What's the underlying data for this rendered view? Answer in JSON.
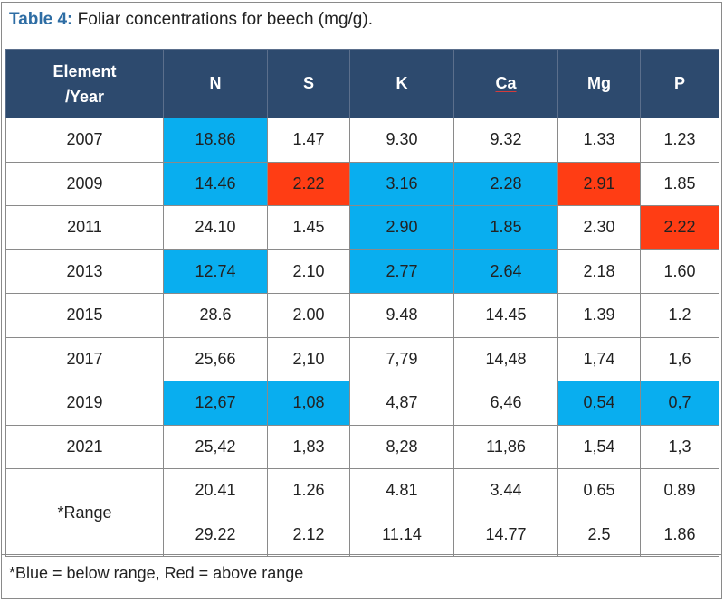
{
  "caption": {
    "label": "Table 4:",
    "text": " Foliar concentrations for beech (mg/g)."
  },
  "colors": {
    "header_bg": "#2d4a6e",
    "below_range": "#09aeef",
    "above_range": "#ff3d14"
  },
  "table": {
    "headers": {
      "first_line1": "Element",
      "first_line2": "/Year",
      "cols": [
        "N",
        "S",
        "K",
        "Ca",
        "Mg",
        "P"
      ]
    },
    "rows": [
      {
        "label": "2007",
        "cells": [
          {
            "v": "18.86",
            "s": "below"
          },
          {
            "v": "1.47",
            "s": ""
          },
          {
            "v": "9.30",
            "s": ""
          },
          {
            "v": "9.32",
            "s": ""
          },
          {
            "v": "1.33",
            "s": ""
          },
          {
            "v": "1.23",
            "s": ""
          }
        ]
      },
      {
        "label": "2009",
        "cells": [
          {
            "v": "14.46",
            "s": "below"
          },
          {
            "v": "2.22",
            "s": "above"
          },
          {
            "v": "3.16",
            "s": "below"
          },
          {
            "v": "2.28",
            "s": "below"
          },
          {
            "v": "2.91",
            "s": "above"
          },
          {
            "v": "1.85",
            "s": ""
          }
        ]
      },
      {
        "label": "2011",
        "cells": [
          {
            "v": "24.10",
            "s": ""
          },
          {
            "v": "1.45",
            "s": ""
          },
          {
            "v": "2.90",
            "s": "below"
          },
          {
            "v": "1.85",
            "s": "below"
          },
          {
            "v": "2.30",
            "s": ""
          },
          {
            "v": "2.22",
            "s": "above"
          }
        ]
      },
      {
        "label": "2013",
        "cells": [
          {
            "v": "12.74",
            "s": "below"
          },
          {
            "v": "2.10",
            "s": ""
          },
          {
            "v": "2.77",
            "s": "below"
          },
          {
            "v": "2.64",
            "s": "below"
          },
          {
            "v": "2.18",
            "s": ""
          },
          {
            "v": "1.60",
            "s": ""
          }
        ]
      },
      {
        "label": "2015",
        "cells": [
          {
            "v": "28.6",
            "s": ""
          },
          {
            "v": "2.00",
            "s": ""
          },
          {
            "v": "9.48",
            "s": ""
          },
          {
            "v": "14.45",
            "s": ""
          },
          {
            "v": "1.39",
            "s": ""
          },
          {
            "v": "1.2",
            "s": ""
          }
        ]
      },
      {
        "label": "2017",
        "cells": [
          {
            "v": "25,66",
            "s": ""
          },
          {
            "v": "2,10",
            "s": ""
          },
          {
            "v": "7,79",
            "s": ""
          },
          {
            "v": "14,48",
            "s": ""
          },
          {
            "v": "1,74",
            "s": ""
          },
          {
            "v": "1,6",
            "s": ""
          }
        ]
      },
      {
        "label": "2019",
        "cells": [
          {
            "v": "12,67",
            "s": "below"
          },
          {
            "v": "1,08",
            "s": "below"
          },
          {
            "v": "4,87",
            "s": ""
          },
          {
            "v": "6,46",
            "s": ""
          },
          {
            "v": "0,54",
            "s": "below"
          },
          {
            "v": "0,7",
            "s": "below"
          }
        ]
      },
      {
        "label": "2021",
        "cells": [
          {
            "v": "25,42",
            "s": ""
          },
          {
            "v": "1,83",
            "s": ""
          },
          {
            "v": "8,28",
            "s": ""
          },
          {
            "v": "11,86",
            "s": ""
          },
          {
            "v": "1,54",
            "s": ""
          },
          {
            "v": "1,3",
            "s": ""
          }
        ]
      }
    ],
    "range": {
      "label": "*Range",
      "low": [
        "20.41",
        "1.26",
        "4.81",
        "3.44",
        "0.65",
        "0.89"
      ],
      "high": [
        "29.22",
        "2.12",
        "11.14",
        "14.77",
        "2.5",
        "1.86"
      ]
    }
  },
  "footnote": "*Blue = below range, Red = above range"
}
